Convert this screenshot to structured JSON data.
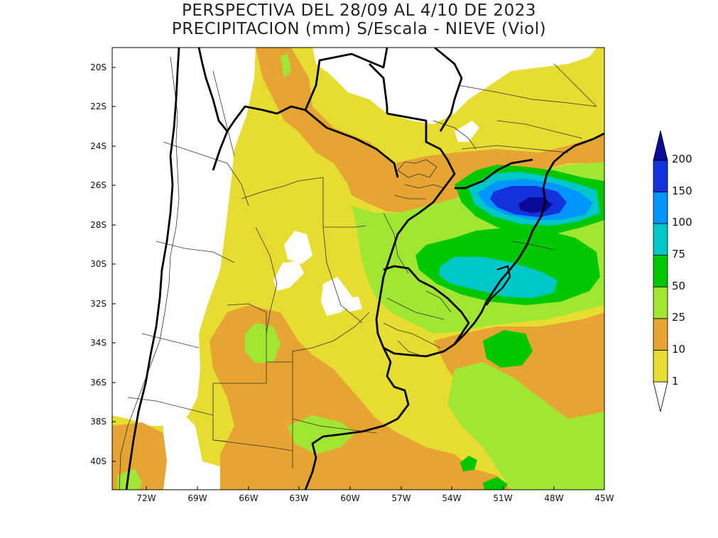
{
  "title": {
    "line1": "PERSPECTIVA DEL 28/09 AL 4/10 DE 2023",
    "line2": "PRECIPITACION (mm) S/Escala - NIEVE (Viol)"
  },
  "map": {
    "lat_ticks": [
      "20S",
      "22S",
      "24S",
      "26S",
      "28S",
      "30S",
      "32S",
      "34S",
      "36S",
      "38S",
      "40S"
    ],
    "lon_ticks": [
      "72W",
      "69W",
      "66W",
      "63W",
      "60W",
      "57W",
      "54W",
      "51W",
      "48W",
      "45W"
    ],
    "lon_range": [
      -74,
      -45
    ],
    "lat_range": [
      -41.5,
      -19
    ]
  },
  "colorbar": {
    "labels": [
      "1",
      "10",
      "25",
      "50",
      "75",
      "100",
      "150",
      "200"
    ],
    "colors": [
      "#ffffff",
      "#e6dc32",
      "#e6a532",
      "#a0e632",
      "#00c800",
      "#00c8c8",
      "#0096ff",
      "#1432dc",
      "#0a0a96"
    ]
  }
}
